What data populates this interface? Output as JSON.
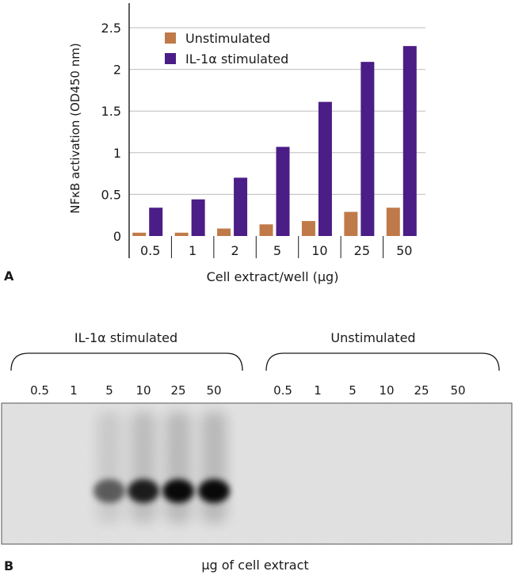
{
  "panel_a": {
    "label": "A"
  },
  "chart_data": {
    "type": "bar",
    "categories": [
      "0.5",
      "1",
      "2",
      "5",
      "10",
      "25",
      "50"
    ],
    "series": [
      {
        "name": "Unstimulated",
        "values": [
          0.04,
          0.04,
          0.09,
          0.14,
          0.18,
          0.29,
          0.34
        ]
      },
      {
        "name": "IL-1α stimulated",
        "values": [
          0.34,
          0.44,
          0.7,
          1.07,
          1.61,
          2.09,
          2.28
        ]
      }
    ],
    "xlabel": "Cell extract/well (μg)",
    "ylabel": "NFκB activation (OD450 nm)",
    "ylim": [
      0,
      2.5
    ],
    "yticks": [
      "0",
      "0.5",
      "1",
      "1.5",
      "2",
      "2.5"
    ],
    "grid": true,
    "legend": "top-left",
    "colors": {
      "Unstimulated": "#c07a4a",
      "IL-1α stimulated": "#4b1d86"
    }
  },
  "panel_b": {
    "label": "B",
    "xlabel": "μg of cell extract",
    "groups": [
      {
        "title": "IL-1α stimulated",
        "lanes": [
          "0.5",
          "1",
          "5",
          "10",
          "25",
          "50"
        ],
        "band_intensity": [
          0,
          0,
          0.55,
          0.85,
          0.95,
          0.95
        ]
      },
      {
        "title": "Unstimulated",
        "lanes": [
          "0.5",
          "1",
          "5",
          "10",
          "25",
          "50"
        ],
        "band_intensity": [
          0,
          0,
          0,
          0,
          0,
          0
        ]
      }
    ],
    "gel_color": "#e4e4e4"
  }
}
